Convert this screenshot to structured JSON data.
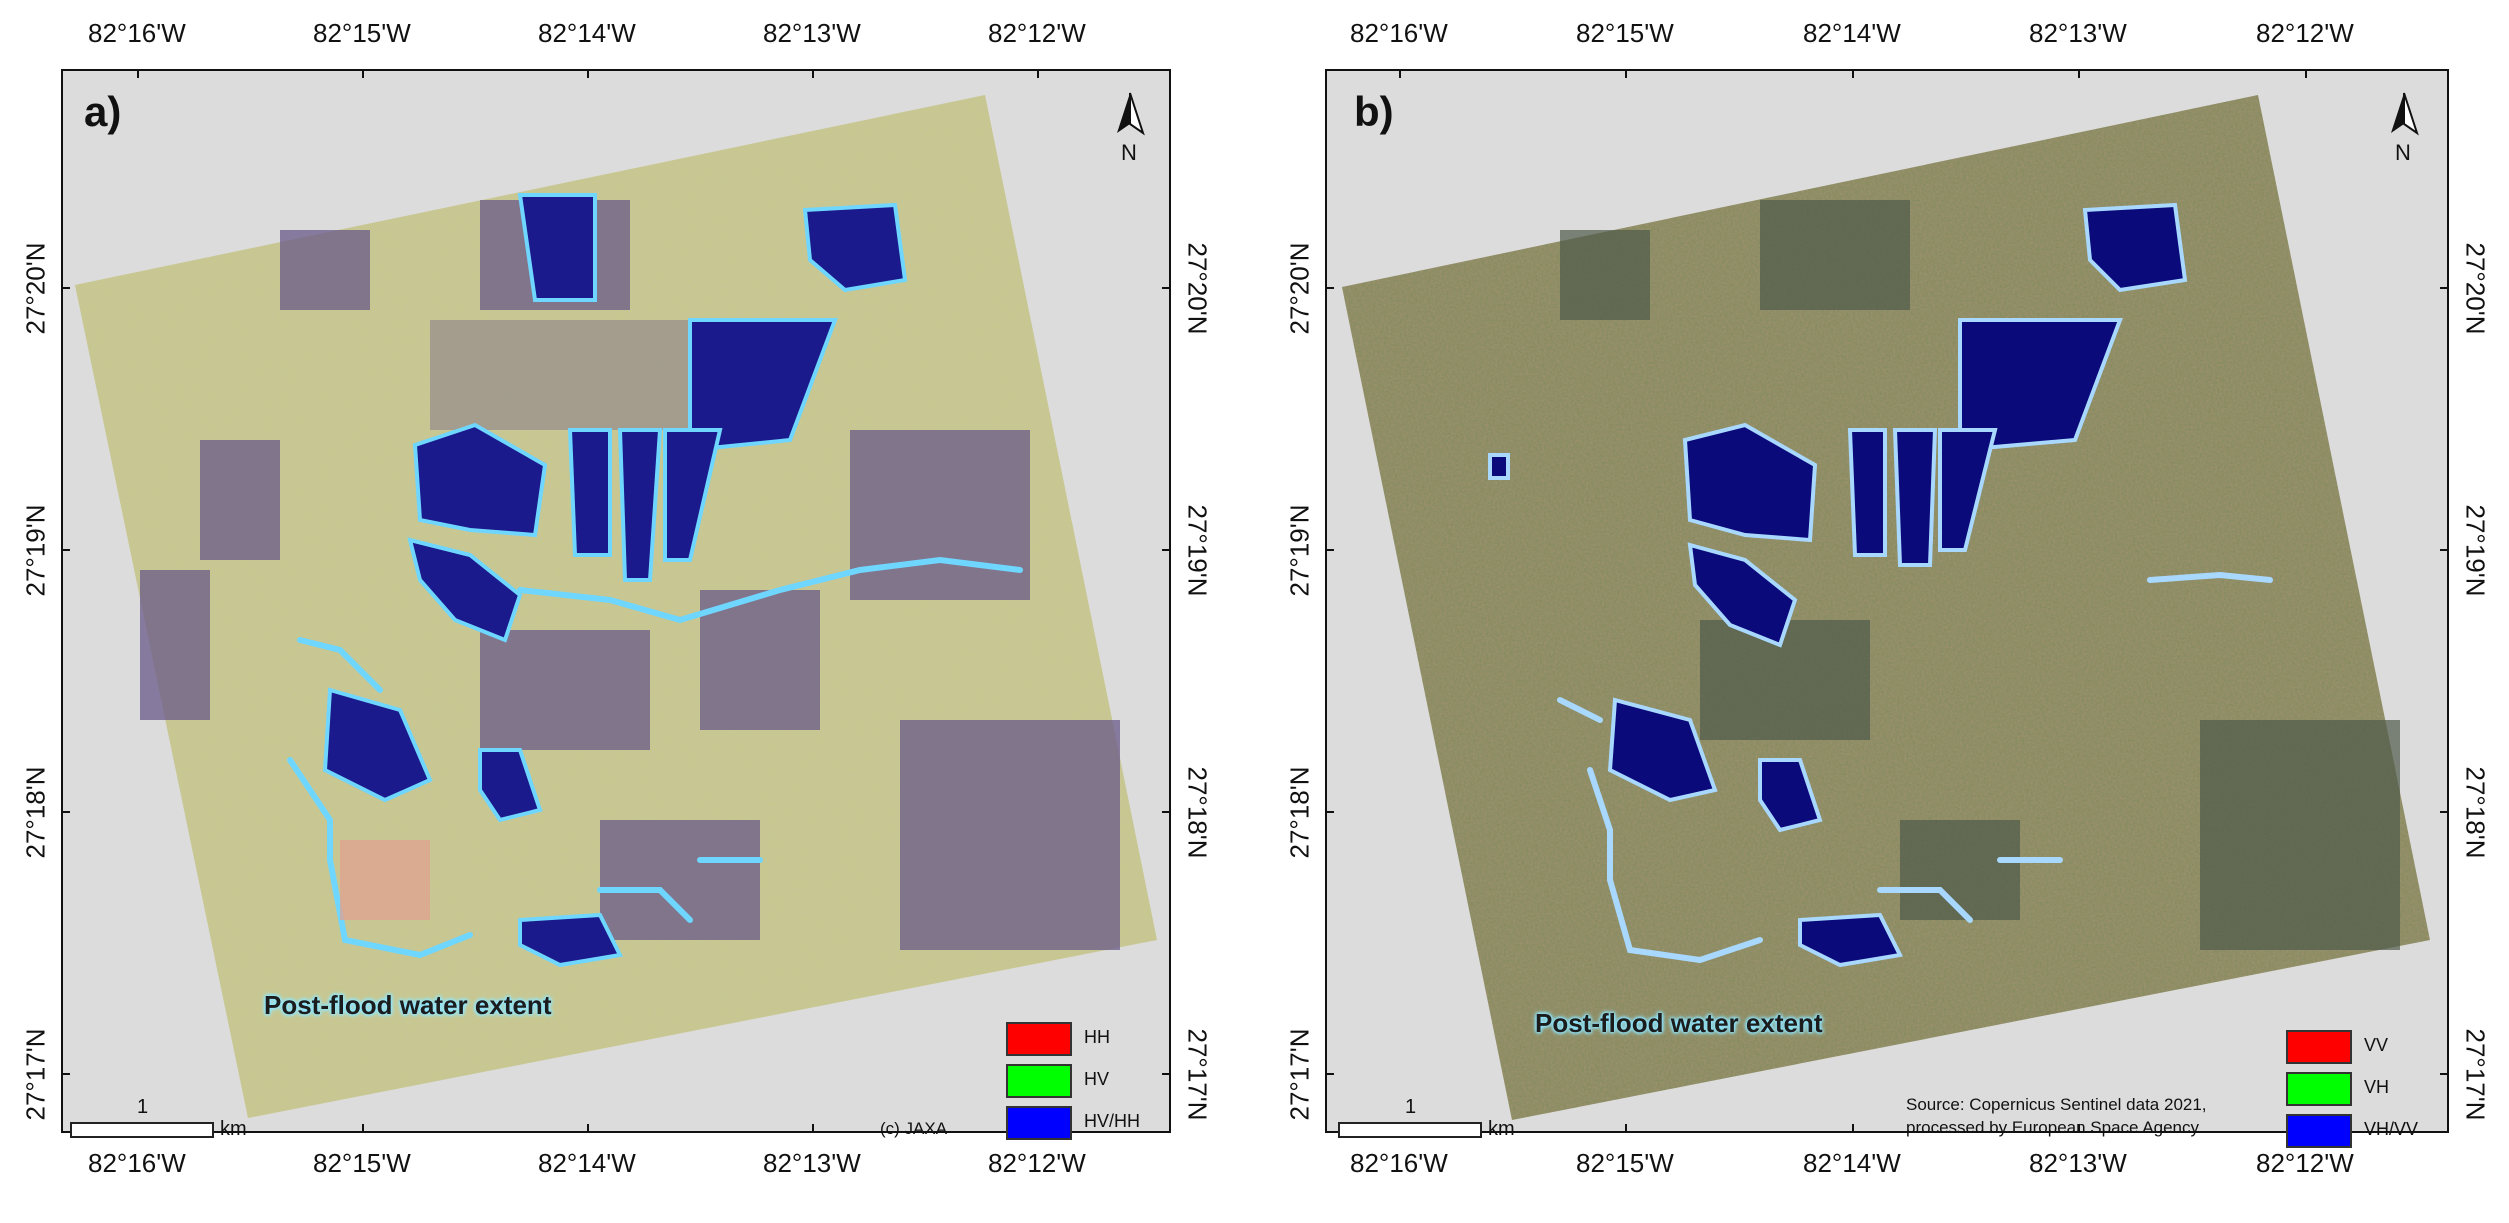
{
  "panels": [
    {
      "letter": "a)",
      "top_ticks": [
        "82°16'W",
        "82°15'W",
        "82°14'W",
        "82°13'W",
        "82°12'W"
      ],
      "bottom_ticks": [
        "82°16'W",
        "82°15'W",
        "82°14'W",
        "82°13'W",
        "82°12'W"
      ],
      "left_ticks": [
        "27°20'N",
        "27°19'N",
        "27°18'N",
        "27°17'N"
      ],
      "right_ticks": [
        "27°20'N",
        "27°19'N",
        "27°18'N",
        "27°17'N"
      ],
      "north_label": "N",
      "flood_label": "Post-flood water extent",
      "legend": [
        {
          "label": "HH",
          "color": "#ff0000"
        },
        {
          "label": "HV",
          "color": "#00ff00"
        },
        {
          "label": "HV/HH",
          "color": "#0000ff"
        }
      ],
      "scale_value": "1",
      "scale_unit": "km",
      "credit": "(c) JAXA"
    },
    {
      "letter": "b)",
      "top_ticks": [
        "82°16'W",
        "82°15'W",
        "82°14'W",
        "82°13'W",
        "82°12'W"
      ],
      "bottom_ticks": [
        "82°16'W",
        "82°15'W",
        "82°14'W",
        "82°13'W",
        "82°12'W"
      ],
      "left_ticks": [
        "27°20'N",
        "27°19'N",
        "27°18'N",
        "27°17'N"
      ],
      "right_ticks": [
        "27°20'N",
        "27°19'N",
        "27°18'N",
        "27°17'N"
      ],
      "north_label": "N",
      "flood_label": "Post-flood water extent",
      "legend": [
        {
          "label": "VV",
          "color": "#ff0000"
        },
        {
          "label": "VH",
          "color": "#00ff00"
        },
        {
          "label": "VH/VV",
          "color": "#0000ff"
        }
      ],
      "scale_value": "1",
      "scale_unit": "km",
      "source_line1": "Source: Copernicus Sentinel data 2021,",
      "source_line2": "processed by European Space Agency"
    }
  ],
  "colors": {
    "frame_bg": "#dcdcdc",
    "scene_a": "#c9c88f",
    "scene_a_dark": "#6a5a8a",
    "scene_b": "#7f8a5a",
    "scene_b_dark": "#4f5a4a",
    "water_open": "#1a1a8c",
    "water_outline_a": "#6fd6ff",
    "water_outline_b": "#a9d8ff"
  }
}
